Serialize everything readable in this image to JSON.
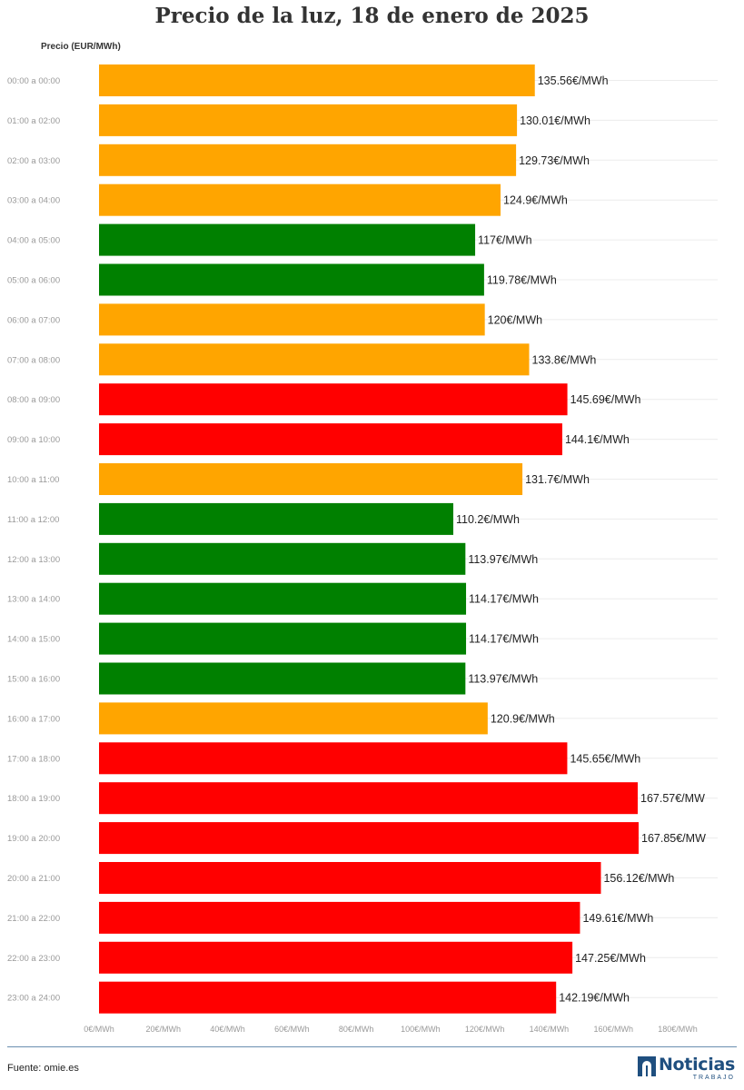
{
  "chart_data": {
    "type": "bar",
    "orientation": "horizontal",
    "title": "Precio de la luz, 18 de enero de 2025",
    "ylabel": "Precio (EUR/MWh)",
    "xlim": [
      0,
      180
    ],
    "x_ticks": [
      {
        "value": 0,
        "label": "0€/MWh"
      },
      {
        "value": 20,
        "label": "20€/MWh"
      },
      {
        "value": 40,
        "label": "40€/MWh"
      },
      {
        "value": 60,
        "label": "60€/MWh"
      },
      {
        "value": 80,
        "label": "80€/MWh"
      },
      {
        "value": 100,
        "label": "100€/MWh"
      },
      {
        "value": 120,
        "label": "120€/MWh"
      },
      {
        "value": 140,
        "label": "140€/MWh"
      },
      {
        "value": 160,
        "label": "160€/MWh"
      },
      {
        "value": 180,
        "label": "180€/MWh"
      }
    ],
    "grid": true,
    "colors": {
      "low": "#008000",
      "mid": "#FFA500",
      "high": "#FF0000"
    },
    "categories": [
      "00:00 a 00:00",
      "01:00 a 02:00",
      "02:00 a 03:00",
      "03:00 a 04:00",
      "04:00 a 05:00",
      "05:00 a 06:00",
      "06:00 a 07:00",
      "07:00 a 08:00",
      "08:00 a 09:00",
      "09:00 a 10:00",
      "10:00 a 11:00",
      "11:00 a 12:00",
      "12:00 a 13:00",
      "13:00 a 14:00",
      "14:00 a 15:00",
      "15:00 a 16:00",
      "16:00 a 17:00",
      "17:00 a 18:00",
      "18:00 a 19:00",
      "19:00 a 20:00",
      "20:00 a 21:00",
      "21:00 a 22:00",
      "22:00 a 23:00",
      "23:00 a 24:00"
    ],
    "values": [
      135.56,
      130.01,
      129.73,
      124.9,
      117,
      119.78,
      120,
      133.8,
      145.69,
      144.1,
      131.7,
      110.2,
      113.97,
      114.17,
      114.17,
      113.97,
      120.9,
      145.65,
      167.57,
      167.85,
      156.12,
      149.61,
      147.25,
      142.19
    ],
    "data_labels": [
      "135.56€/MWh",
      "130.01€/MWh",
      "129.73€/MWh",
      "124.9€/MWh",
      "117€/MWh",
      "119.78€/MWh",
      "120€/MWh",
      "133.8€/MWh",
      "145.69€/MWh",
      "144.1€/MWh",
      "131.7€/MWh",
      "110.2€/MWh",
      "113.97€/MWh",
      "114.17€/MWh",
      "114.17€/MWh",
      "113.97€/MWh",
      "120.9€/MWh",
      "145.65€/MWh",
      "167.57€/MW",
      "167.85€/MW",
      "156.12€/MWh",
      "149.61€/MWh",
      "147.25€/MWh",
      "142.19€/MWh"
    ],
    "bar_levels": [
      "mid",
      "mid",
      "mid",
      "mid",
      "low",
      "low",
      "mid",
      "mid",
      "high",
      "high",
      "mid",
      "low",
      "low",
      "low",
      "low",
      "low",
      "mid",
      "high",
      "high",
      "high",
      "high",
      "high",
      "high",
      "high"
    ]
  },
  "footer": {
    "source": "Fuente: omie.es",
    "logo_name": "Noticias",
    "logo_sub": "TRABAJO"
  }
}
